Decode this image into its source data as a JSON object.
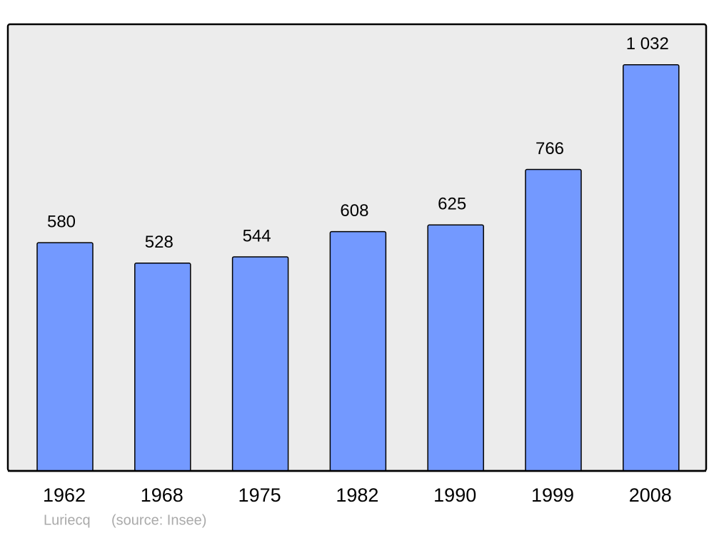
{
  "chart_data": {
    "type": "bar",
    "categories": [
      "1962",
      "1968",
      "1975",
      "1982",
      "1990",
      "1999",
      "2008"
    ],
    "values": [
      580,
      528,
      544,
      608,
      625,
      766,
      1032
    ],
    "value_labels": [
      "580",
      "528",
      "544",
      "608",
      "625",
      "766",
      "1 032"
    ],
    "color": "#7399ff",
    "ylim": [
      0,
      1135
    ],
    "annotations": [
      "Luriecq",
      "(source: Insee)"
    ]
  }
}
